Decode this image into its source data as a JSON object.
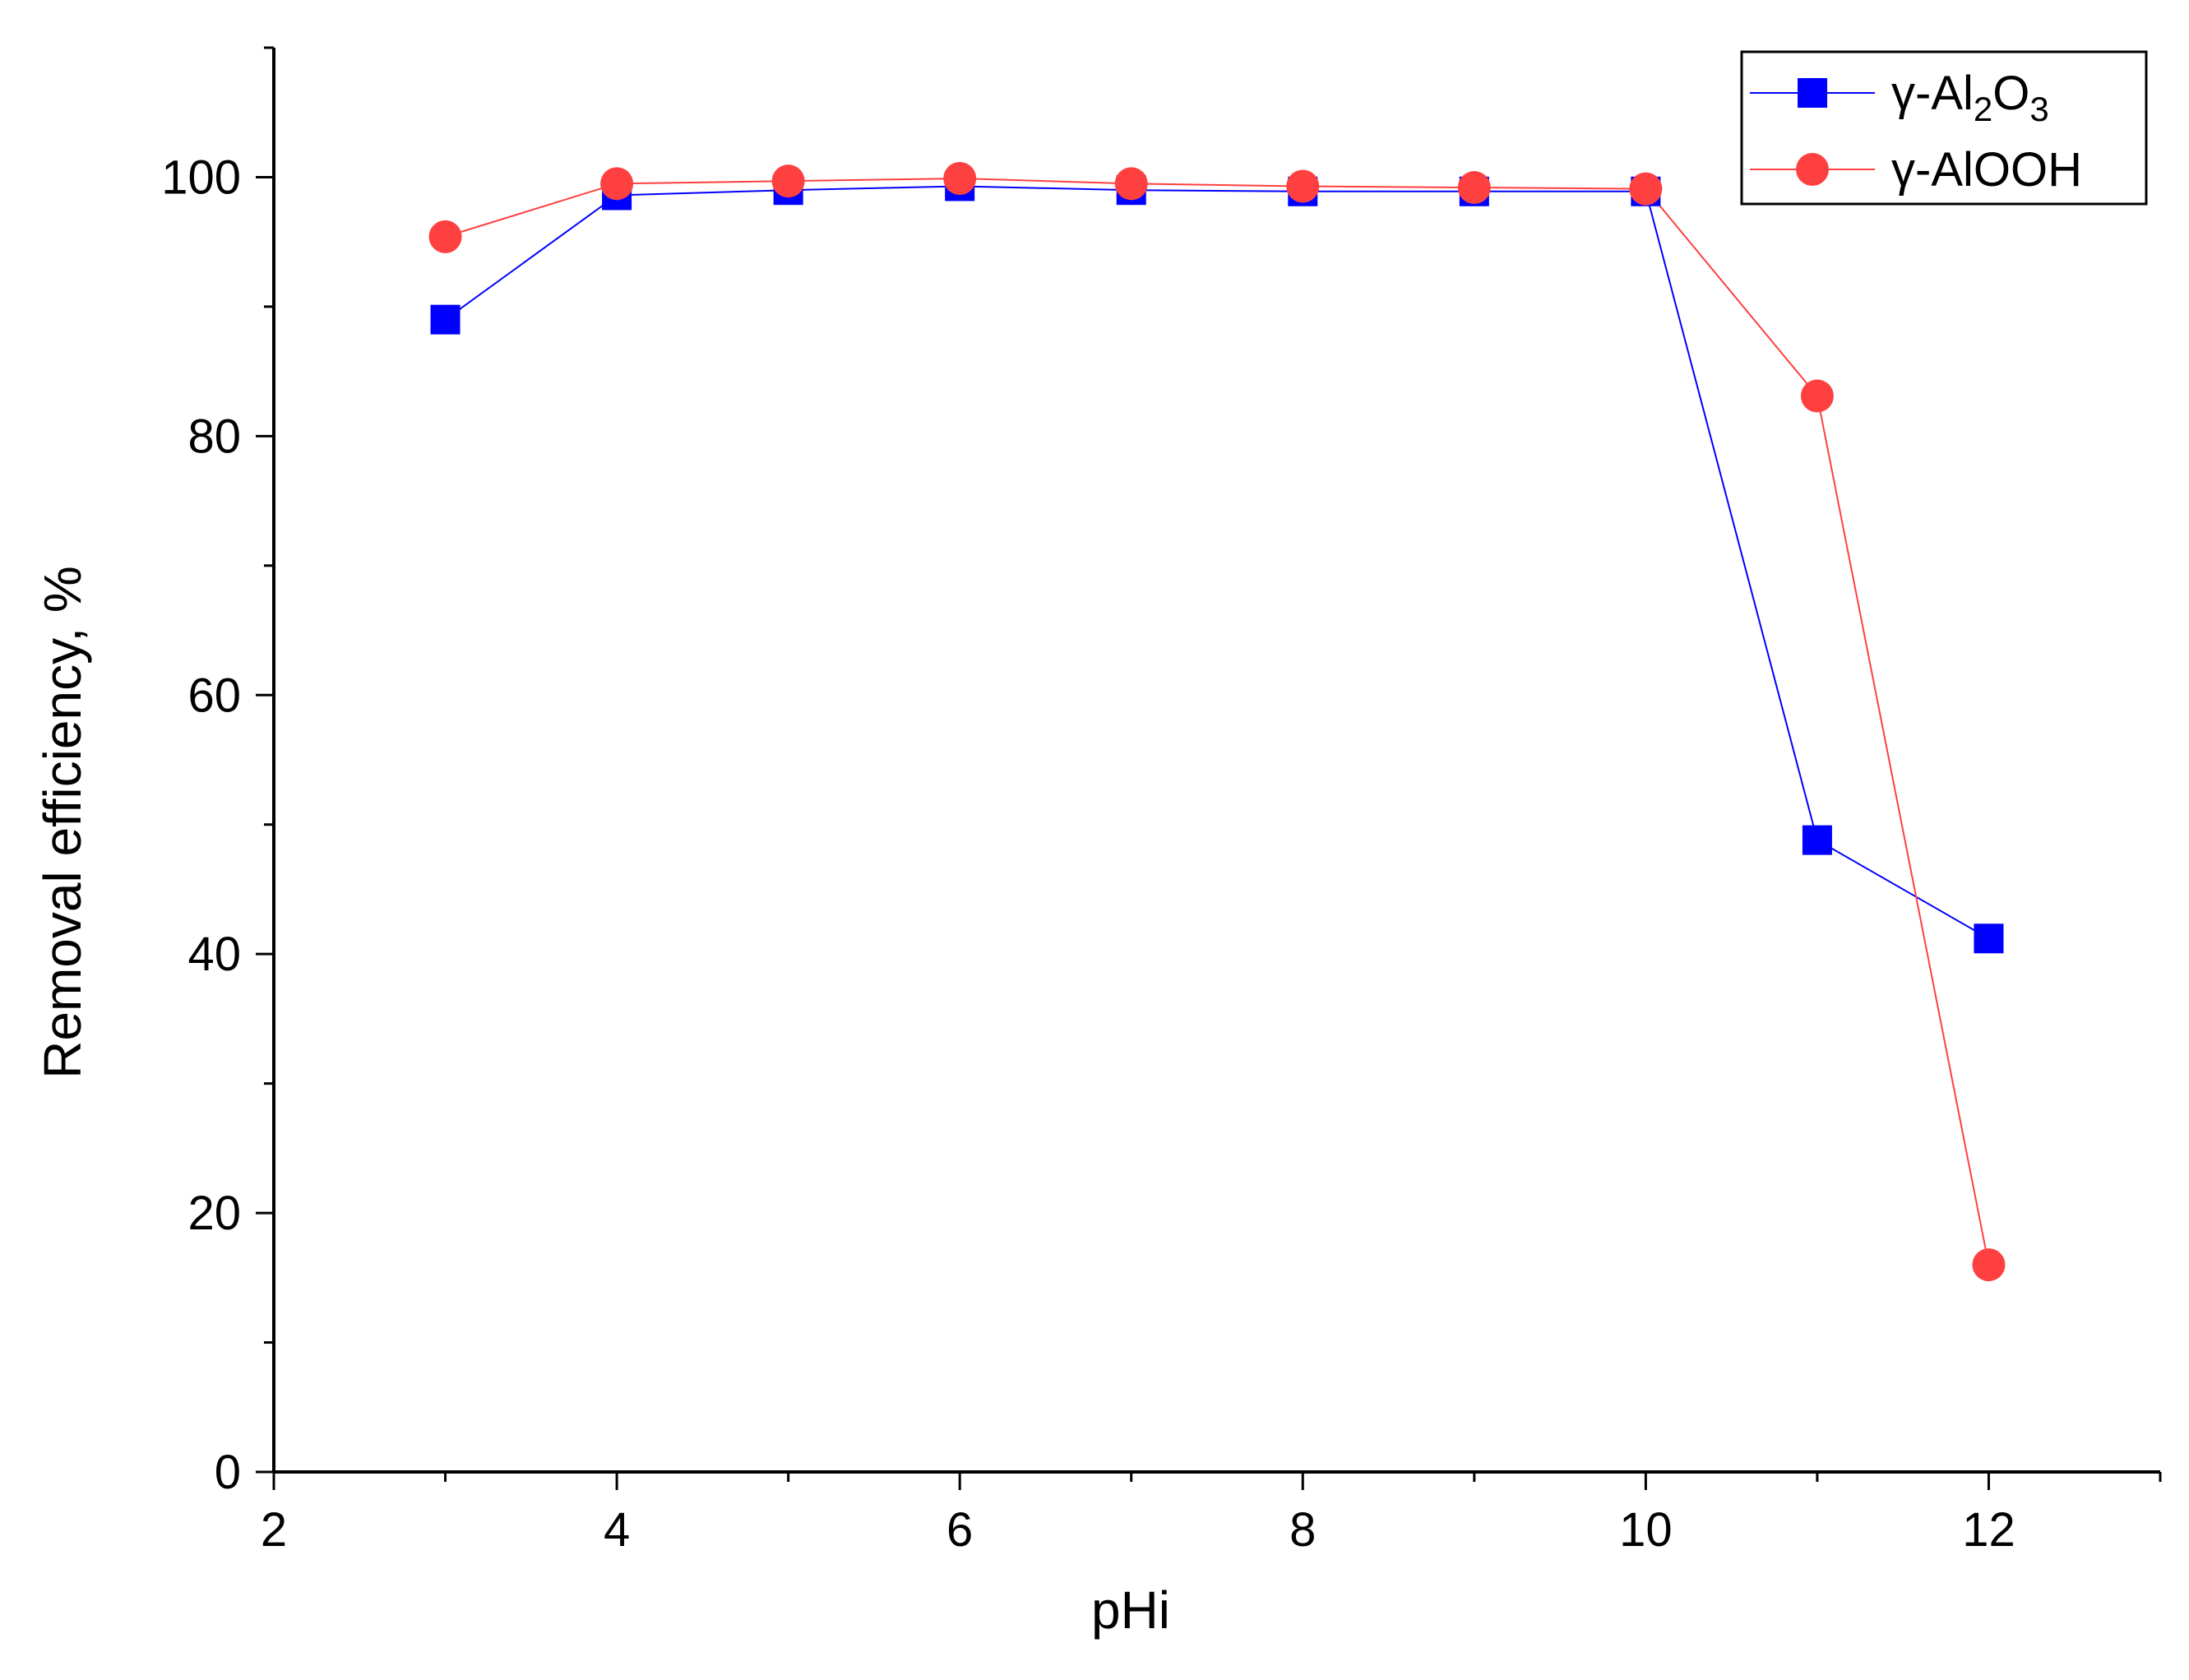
{
  "chart_data": {
    "type": "line",
    "xlabel": "pHi",
    "ylabel": "Removal efficiency, %",
    "xlim": [
      2,
      13
    ],
    "ylim": [
      0,
      110
    ],
    "x_ticks": [
      "2",
      "4",
      "6",
      "8",
      "10",
      "12"
    ],
    "y_ticks": [
      "0",
      "20",
      "40",
      "60",
      "80",
      "100"
    ],
    "legend_position": "top-right",
    "grid": false,
    "series": [
      {
        "name_parts": {
          "prefix": "γ-Al",
          "sub1": "2",
          "mid": "O",
          "sub2": "3"
        },
        "color": "#0000ff",
        "marker": "square",
        "x": [
          3,
          4,
          5,
          6,
          7,
          8,
          9,
          10,
          11,
          12
        ],
        "y": [
          89.0,
          98.6,
          99.0,
          99.3,
          99.0,
          98.9,
          98.9,
          98.9,
          48.8,
          41.2
        ]
      },
      {
        "name": "γ-AlOOH",
        "color": "#ff4040",
        "marker": "circle",
        "x": [
          3,
          4,
          5,
          6,
          7,
          8,
          9,
          10,
          11,
          12
        ],
        "y": [
          95.4,
          99.5,
          99.7,
          99.9,
          99.5,
          99.3,
          99.2,
          99.1,
          83.1,
          16.0
        ]
      }
    ]
  }
}
